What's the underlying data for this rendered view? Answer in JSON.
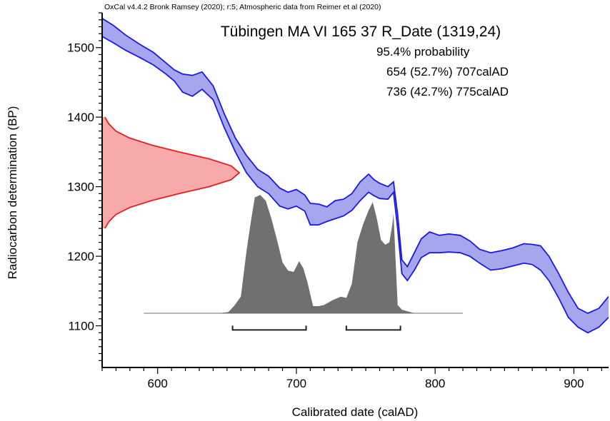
{
  "credit": "OxCal v4.4.2 Bronk Ramsey (2020); r:5; Atmospheric data from Reimer et al (2020)",
  "chart_data": {
    "type": "area",
    "title": "Tübingen MA VI 165 37 R_Date (1319,24)",
    "probability_lines": [
      "95.4% probability",
      "654 (52.7%) 707calAD",
      "736 (42.7%) 775calAD"
    ],
    "xlabel": "Calibrated date (calAD)",
    "ylabel": "Radiocarbon determination (BP)",
    "xlim": [
      560,
      925
    ],
    "ylim": [
      1040,
      1550
    ],
    "x_ticks": [
      600,
      700,
      800,
      900
    ],
    "y_ticks": [
      1100,
      1200,
      1300,
      1400,
      1500
    ],
    "colors": {
      "calibration": "#1a1ae6",
      "calibration_fill": "#a6a6ee",
      "radiocarbon": "#e62020",
      "radiocarbon_fill": "#f8aaaa",
      "posterior": "#707070",
      "baseline": "#a0a0a0"
    },
    "calibration_curve": {
      "x": [
        560,
        568,
        577,
        587,
        597,
        606,
        612,
        618,
        625,
        632,
        640,
        648,
        656,
        664,
        672,
        680,
        688,
        694,
        700,
        706,
        710,
        716,
        722,
        728,
        734,
        740,
        746,
        752,
        756,
        760,
        766,
        770,
        773,
        776,
        780,
        785,
        790,
        796,
        803,
        810,
        818,
        825,
        832,
        840,
        848,
        856,
        864,
        870,
        876,
        882,
        889,
        896,
        903,
        910,
        918,
        925
      ],
      "upper": [
        1542,
        1532,
        1518,
        1505,
        1493,
        1478,
        1468,
        1462,
        1460,
        1465,
        1445,
        1405,
        1370,
        1345,
        1325,
        1315,
        1298,
        1292,
        1296,
        1288,
        1276,
        1275,
        1271,
        1280,
        1282,
        1290,
        1307,
        1318,
        1310,
        1305,
        1300,
        1307,
        1260,
        1195,
        1185,
        1205,
        1225,
        1235,
        1230,
        1232,
        1230,
        1222,
        1210,
        1205,
        1208,
        1212,
        1218,
        1217,
        1215,
        1200,
        1175,
        1148,
        1125,
        1118,
        1125,
        1142
      ],
      "lower": [
        1516,
        1507,
        1496,
        1486,
        1475,
        1462,
        1452,
        1436,
        1430,
        1440,
        1425,
        1385,
        1350,
        1320,
        1300,
        1290,
        1272,
        1268,
        1272,
        1265,
        1245,
        1245,
        1250,
        1254,
        1258,
        1266,
        1280,
        1292,
        1287,
        1283,
        1282,
        1292,
        1240,
        1175,
        1165,
        1180,
        1198,
        1205,
        1205,
        1206,
        1205,
        1200,
        1190,
        1180,
        1182,
        1186,
        1190,
        1188,
        1180,
        1165,
        1140,
        1112,
        1098,
        1090,
        1098,
        1112
      ]
    },
    "radiocarbon_distribution": {
      "bp": [
        1240,
        1250,
        1260,
        1270,
        1280,
        1290,
        1300,
        1310,
        1320,
        1330,
        1340,
        1350,
        1360,
        1370,
        1380,
        1390,
        1400
      ],
      "density": [
        0.02,
        0.05,
        0.1,
        0.2,
        0.36,
        0.56,
        0.78,
        0.94,
        1.0,
        0.94,
        0.78,
        0.56,
        0.36,
        0.2,
        0.1,
        0.05,
        0.02
      ]
    },
    "posterior_distribution": {
      "x": [
        590,
        645,
        651,
        655,
        660,
        664,
        667,
        670,
        674,
        678,
        682,
        686,
        690,
        694,
        698,
        702,
        705,
        708,
        712,
        716,
        720,
        726,
        732,
        736,
        740,
        744,
        748,
        752,
        755,
        758,
        761,
        764,
        767,
        769,
        770,
        773,
        776,
        785,
        820
      ],
      "density": [
        0,
        0,
        0.01,
        0.06,
        0.14,
        0.52,
        0.76,
        0.98,
        1.0,
        0.95,
        0.8,
        0.62,
        0.43,
        0.36,
        0.35,
        0.44,
        0.38,
        0.26,
        0.06,
        0.06,
        0.07,
        0.11,
        0.14,
        0.13,
        0.25,
        0.6,
        0.75,
        0.87,
        0.94,
        0.8,
        0.62,
        0.58,
        0.6,
        0.74,
        0.84,
        0.07,
        0.03,
        0,
        0
      ]
    },
    "hpd_ranges": [
      [
        654,
        707
      ],
      [
        736,
        775
      ]
    ]
  }
}
